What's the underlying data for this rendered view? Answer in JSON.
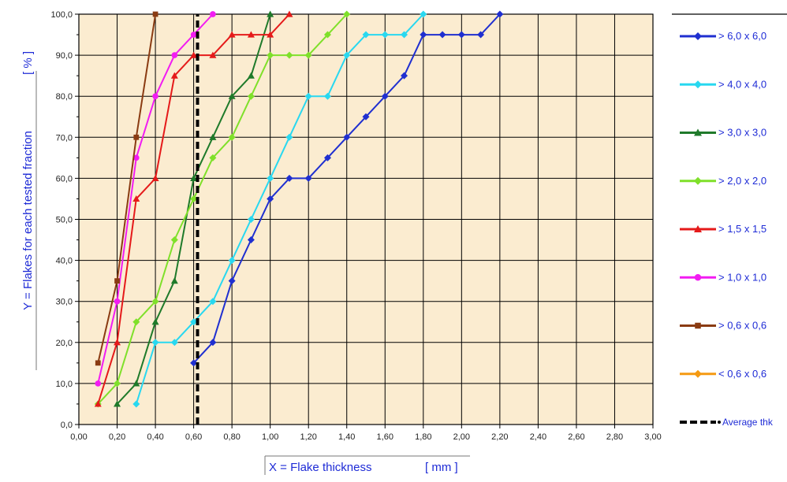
{
  "colors": {
    "plot_background": "#fbecd0",
    "grid": "#000000",
    "axis_label_text": "#1e2bd6"
  },
  "chart_data": {
    "type": "line",
    "title": "",
    "xlabel": "X = Flake thickness",
    "xlabel_unit": "[ mm ]",
    "ylabel": "Y = Flakes for each tested fraction",
    "ylabel_unit": "[ % ]",
    "xlim": [
      0,
      3
    ],
    "ylim": [
      0,
      100
    ],
    "x_ticks": [
      "0,00",
      "0,20",
      "0,40",
      "0,60",
      "0,80",
      "1,00",
      "1,20",
      "1,40",
      "1,60",
      "1,80",
      "2,00",
      "2,20",
      "2,40",
      "2,60",
      "2,80",
      "3,00"
    ],
    "y_ticks": [
      "0,0",
      "10,0",
      "20,0",
      "30,0",
      "40,0",
      "50,0",
      "60,0",
      "70,0",
      "80,0",
      "90,0",
      "100,0"
    ],
    "grid": true,
    "legend_position": "right",
    "series": [
      {
        "name": "> 6,0 x 6,0",
        "color": "#1f2fd0",
        "marker": "diamond",
        "x": [
          0.6,
          0.7,
          0.8,
          0.9,
          1.0,
          1.1,
          1.2,
          1.3,
          1.4,
          1.5,
          1.6,
          1.7,
          1.8,
          1.9,
          2.0,
          2.1,
          2.2
        ],
        "y": [
          15,
          20,
          35,
          45,
          55,
          60,
          60,
          65,
          70,
          75,
          80,
          85,
          95,
          95,
          95,
          95,
          100
        ]
      },
      {
        "name": "> 4,0 x 4,0",
        "color": "#28d8f0",
        "marker": "diamond",
        "x": [
          0.3,
          0.4,
          0.5,
          0.6,
          0.7,
          0.8,
          0.9,
          1.0,
          1.1,
          1.2,
          1.3,
          1.4,
          1.5,
          1.6,
          1.7,
          1.8
        ],
        "y": [
          5,
          20,
          20,
          25,
          30,
          40,
          50,
          60,
          70,
          80,
          80,
          90,
          95,
          95,
          95,
          100
        ]
      },
      {
        "name": "> 3,0 x 3,0",
        "color": "#1f7a2a",
        "marker": "triangle",
        "x": [
          0.2,
          0.3,
          0.4,
          0.5,
          0.6,
          0.7,
          0.8,
          0.9,
          1.0
        ],
        "y": [
          5,
          10,
          25,
          35,
          60,
          70,
          80,
          85,
          100
        ]
      },
      {
        "name": "> 2,0 x 2,0",
        "color": "#7fe02a",
        "marker": "diamond",
        "x": [
          0.1,
          0.2,
          0.3,
          0.4,
          0.5,
          0.6,
          0.7,
          0.8,
          0.9,
          1.0,
          1.1,
          1.2,
          1.3,
          1.4
        ],
        "y": [
          5,
          10,
          25,
          30,
          45,
          55,
          65,
          70,
          80,
          90,
          90,
          90,
          95,
          100
        ]
      },
      {
        "name": "> 1,5 x 1,5",
        "color": "#e51a1a",
        "marker": "triangle",
        "x": [
          0.1,
          0.2,
          0.3,
          0.4,
          0.5,
          0.6,
          0.7,
          0.8,
          0.9,
          1.0,
          1.1
        ],
        "y": [
          5,
          20,
          55,
          60,
          85,
          90,
          90,
          95,
          95,
          95,
          100
        ]
      },
      {
        "name": "> 1,0 x 1,0",
        "color": "#f21cf2",
        "marker": "circle",
        "x": [
          0.1,
          0.2,
          0.3,
          0.4,
          0.5,
          0.6,
          0.7
        ],
        "y": [
          10,
          30,
          65,
          80,
          90,
          95,
          100
        ]
      },
      {
        "name": "> 0,6 x 0,6",
        "color": "#8a3b12",
        "marker": "square",
        "x": [
          0.1,
          0.2,
          0.3,
          0.4
        ],
        "y": [
          15,
          35,
          70,
          100
        ]
      },
      {
        "name": "< 0,6 x 0,6",
        "color": "#f59a12",
        "marker": "diamond",
        "x": [],
        "y": []
      },
      {
        "name": "Average thk",
        "color": "#000000",
        "marker": "none",
        "dash": true,
        "x": [
          0.62,
          0.62
        ],
        "y": [
          0,
          100
        ]
      }
    ]
  }
}
